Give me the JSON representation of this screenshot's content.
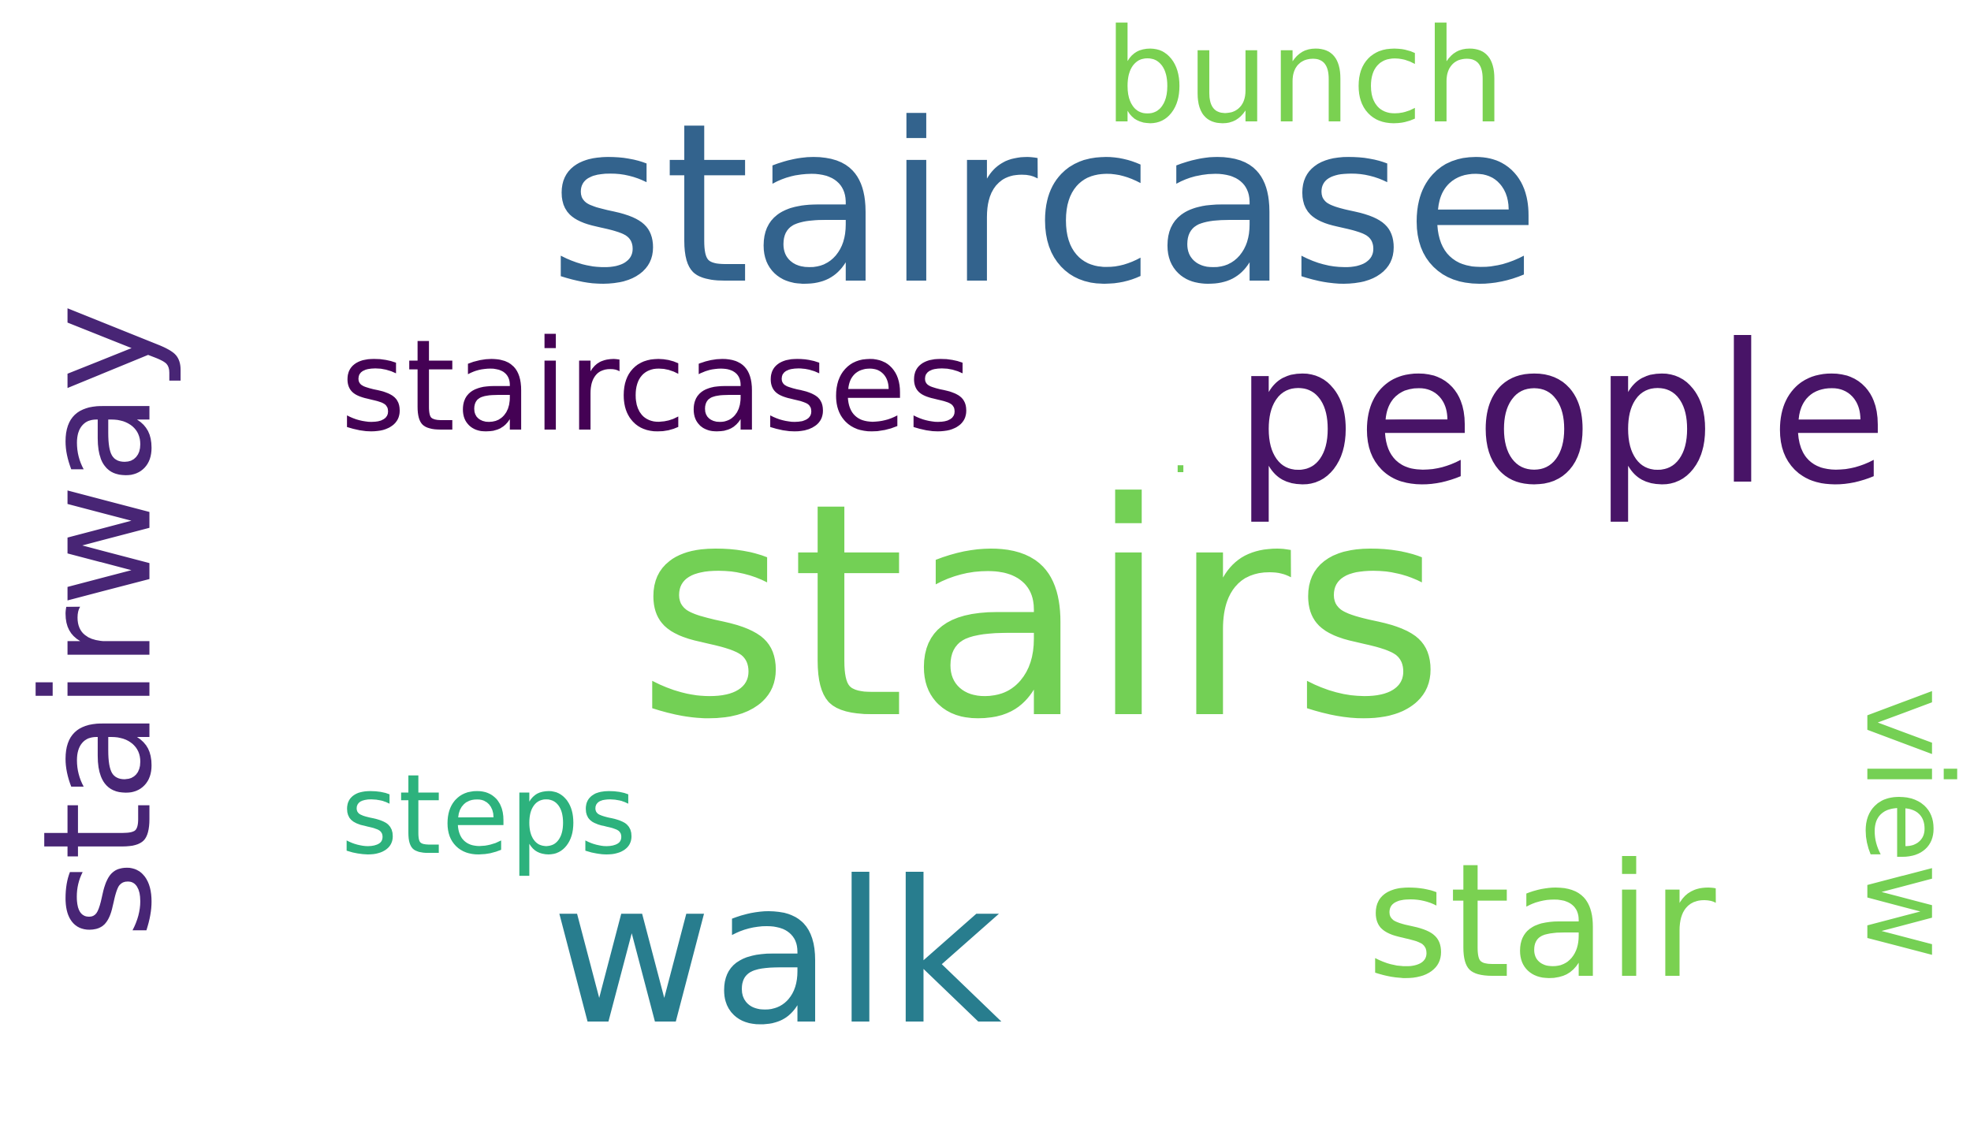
{
  "words": [
    {
      "text": "stairs",
      "color": "#73d055"
    },
    {
      "text": "staircase",
      "color": "#33638d"
    },
    {
      "text": "stairway",
      "color": "#482575"
    },
    {
      "text": "staircases",
      "color": "#440154"
    },
    {
      "text": "people",
      "color": "#481467"
    },
    {
      "text": "walk",
      "color": "#287d8e"
    },
    {
      "text": "stair",
      "color": "#7ad151"
    },
    {
      "text": "steps",
      "color": "#2db27d"
    },
    {
      "text": "bunch",
      "color": "#7ad151"
    },
    {
      "text": "view",
      "color": "#75d054"
    },
    {
      "text": ".",
      "color": "#73d055"
    }
  ]
}
